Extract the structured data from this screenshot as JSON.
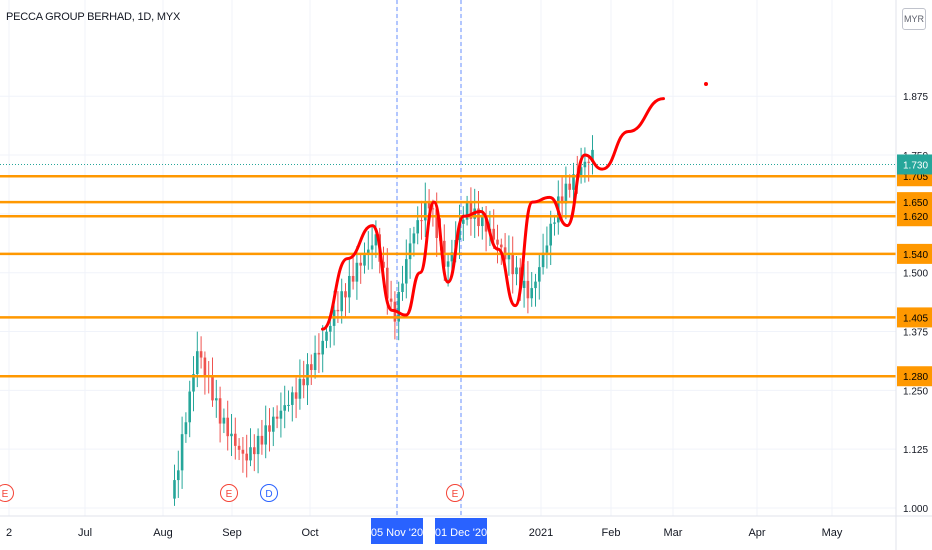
{
  "header": {
    "title": "PECCA GROUP BERHAD, 1D, MYX",
    "currency_button": "MYR"
  },
  "colors": {
    "up": "#26a69a",
    "down": "#ef5350",
    "level": "#ff9800",
    "drawing": "#ff0000",
    "marker_line": "#2962ff",
    "price_line": "#26a69a"
  },
  "chart_data": {
    "type": "candlestick",
    "ylim": [
      1.0,
      1.9
    ],
    "y_scale": "linear",
    "y_ticks": [
      "1.875",
      "1.750",
      "1.625",
      "1.500",
      "1.375",
      "1.250",
      "1.125",
      "1.000"
    ],
    "x_ticks": [
      "2",
      "Jul",
      "Aug",
      "Sep",
      "Oct",
      "05 Nov '20",
      "01 Dec '20",
      "2021",
      "Feb",
      "Mar",
      "Apr",
      "May"
    ],
    "highlighted_x_ticks": [
      "05 Nov '20",
      "01 Dec '20"
    ],
    "current_price": "1.730",
    "horizontal_levels": [
      "1.705",
      "1.650",
      "1.620",
      "1.540",
      "1.405",
      "1.280"
    ],
    "event_markers": [
      {
        "label": "E",
        "date": "Jun 2020"
      },
      {
        "label": "E",
        "date": "Aug 2020"
      },
      {
        "label": "D",
        "date": "Sep 2020"
      },
      {
        "label": "E",
        "date": "Dec 2020"
      }
    ],
    "close_trace": {
      "dates": [
        "Aug 2020",
        "Aug 2020",
        "Aug 2020",
        "Sep 2020",
        "Sep 2020",
        "Sep 2020",
        "Oct 2020",
        "Oct 2020",
        "Oct 2020",
        "Oct 2020",
        "Nov 2020",
        "Nov 2020",
        "Nov 2020",
        "Nov 2020",
        "Dec 2020",
        "Dec 2020",
        "Dec 2020",
        "Dec 2020",
        "Jan 2021",
        "Jan 2021"
      ],
      "values": [
        1.02,
        1.32,
        1.2,
        1.13,
        1.19,
        1.23,
        1.31,
        1.42,
        1.52,
        1.6,
        1.42,
        1.58,
        1.64,
        1.48,
        1.62,
        1.6,
        1.55,
        1.47,
        1.64,
        1.73
      ]
    },
    "annotation_path": {
      "dates": [
        "Oct 2020",
        "Oct 2020",
        "Oct 2020",
        "Nov 2020",
        "Nov 2020",
        "Nov 2020",
        "Nov 2020",
        "Nov 2020",
        "Dec 2020",
        "Dec 2020",
        "Dec 2020",
        "Dec 2020",
        "Dec 2020",
        "Jan 2021",
        "Jan 2021",
        "Jan 2021",
        "Jan 2021",
        "Feb 2021",
        "Feb 2021"
      ],
      "values": [
        1.38,
        1.53,
        1.6,
        1.42,
        1.41,
        1.5,
        1.65,
        1.48,
        1.62,
        1.63,
        1.55,
        1.43,
        1.65,
        1.66,
        1.6,
        1.75,
        1.72,
        1.8,
        1.87
      ]
    }
  }
}
